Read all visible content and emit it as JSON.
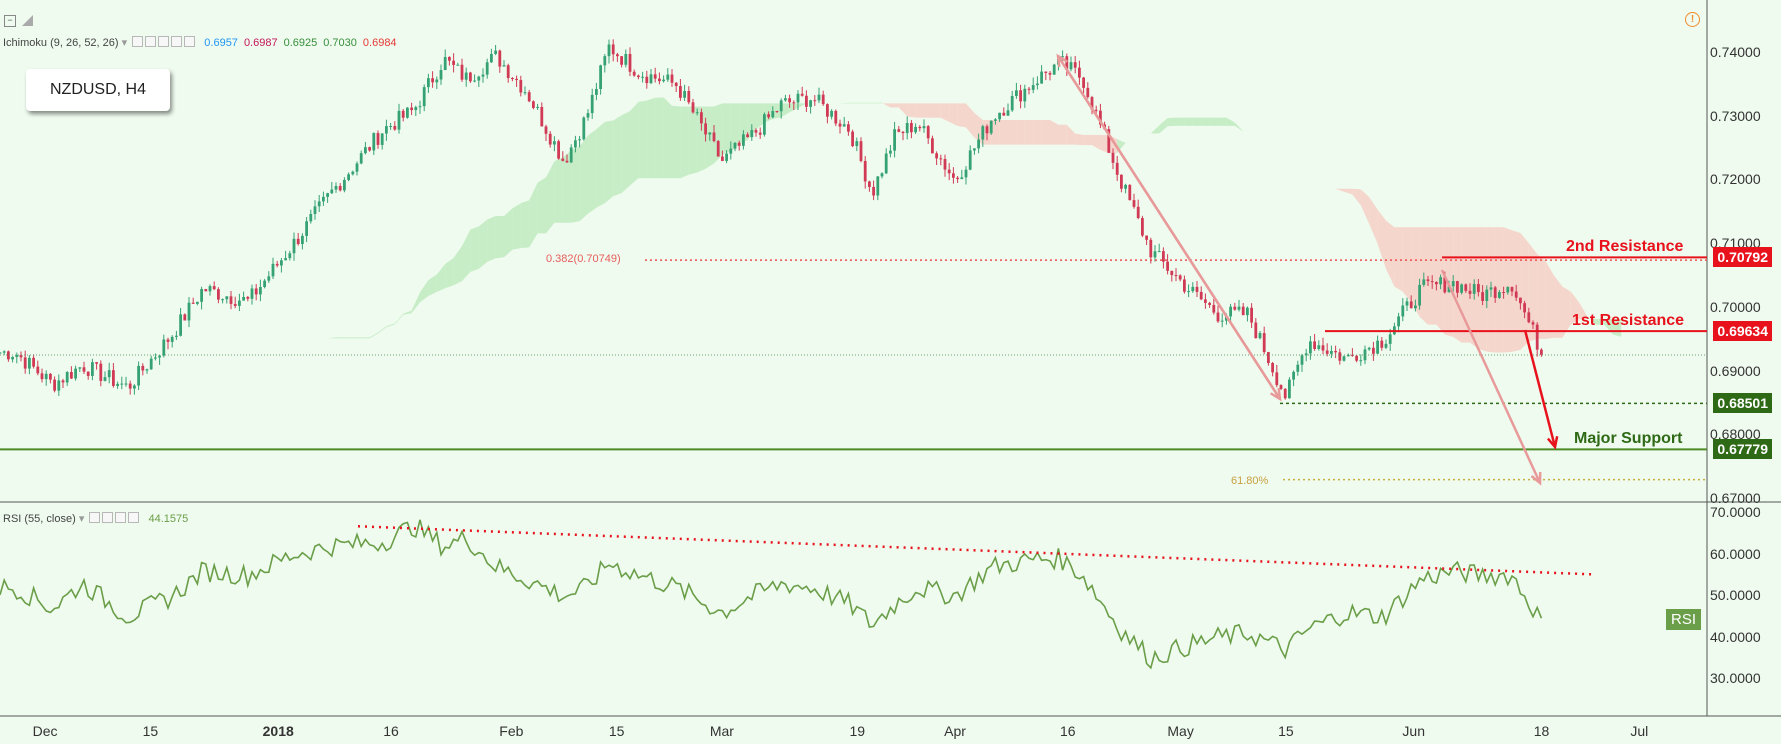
{
  "symbol": "NZDUSD, H4",
  "indicator": {
    "name": "Ichimoku (9, 26, 52, 26)",
    "values": [
      {
        "v": "0.6957",
        "color": "#2196f3"
      },
      {
        "v": "0.6987",
        "color": "#c2185b"
      },
      {
        "v": "0.6925",
        "color": "#388e3c"
      },
      {
        "v": "0.7030",
        "color": "#388e3c"
      },
      {
        "v": "0.6984",
        "color": "#e53935"
      }
    ]
  },
  "rsi_header": {
    "name": "RSI (55, close)",
    "value": "44.1575"
  },
  "rsi_badge": "RSI",
  "price_labels": [
    {
      "text": "0.70792",
      "price": 0.70792,
      "bg": "#e8121c"
    },
    {
      "text": "0.69634",
      "price": 0.69634,
      "bg": "#e8121c"
    },
    {
      "text": "0.68501",
      "price": 0.68501,
      "bg": "#2e6a16"
    },
    {
      "text": "0.67779",
      "price": 0.67779,
      "bg": "#2e6a16"
    }
  ],
  "annotations": {
    "resistance2": "2nd Resistance",
    "resistance1": "1st Resistance",
    "support": "Major Support",
    "fib382": "0.382(0.70749)",
    "fib618": "61.80%"
  },
  "colors": {
    "up": "#36a273",
    "down": "#d13a55",
    "resistance": "#e8121c",
    "support": "#4d8a24",
    "rsi": "#6a9e48"
  },
  "chart_data": {
    "type": "line",
    "xlabel": "",
    "ylabel": "",
    "ylim": [
      0.67,
      0.745
    ],
    "y_ticks": [
      "0.74000",
      "0.73000",
      "0.72000",
      "0.71000",
      "0.70000",
      "0.69000",
      "0.68000",
      "0.67000"
    ],
    "x_ticks": [
      "Dec",
      "15",
      "2018",
      "16",
      "Feb",
      "15",
      "Mar",
      "19",
      "Apr",
      "16",
      "May",
      "15",
      "Jun",
      "18",
      "Jul"
    ],
    "x_tick_dates": [
      "2017-12-01",
      "2017-12-15",
      "2018-01-01",
      "2018-01-16",
      "2018-02-01",
      "2018-02-15",
      "2018-03-01",
      "2018-03-19",
      "2018-04-01",
      "2018-04-16",
      "2018-05-01",
      "2018-05-15",
      "2018-06-01",
      "2018-06-18",
      "2018-07-01"
    ],
    "series": [
      {
        "x": [
          "2017-11-27",
          "2017-12-02",
          "2017-12-06",
          "2017-12-12",
          "2017-12-18",
          "2017-12-22",
          "2017-12-28",
          "2018-01-03",
          "2018-01-08",
          "2018-01-15",
          "2018-01-19",
          "2018-01-23",
          "2018-01-26",
          "2018-01-30",
          "2018-02-03",
          "2018-02-08",
          "2018-02-11",
          "2018-02-14",
          "2018-02-18",
          "2018-02-23",
          "2018-03-01",
          "2018-03-05",
          "2018-03-09",
          "2018-03-13",
          "2018-03-18",
          "2018-03-21",
          "2018-03-24",
          "2018-03-27",
          "2018-04-01",
          "2018-04-06",
          "2018-04-12",
          "2018-04-15",
          "2018-04-18",
          "2018-04-23",
          "2018-04-27",
          "2018-05-02",
          "2018-05-06",
          "2018-05-10",
          "2018-05-15",
          "2018-05-18",
          "2018-05-23",
          "2018-05-28",
          "2018-06-02",
          "2018-06-06",
          "2018-06-10",
          "2018-06-14",
          "2018-06-18"
        ],
        "values": [
          0.693,
          0.688,
          0.691,
          0.6875,
          0.696,
          0.703,
          0.701,
          0.71,
          0.718,
          0.728,
          0.731,
          0.739,
          0.736,
          0.7395,
          0.734,
          0.723,
          0.73,
          0.741,
          0.737,
          0.735,
          0.723,
          0.727,
          0.732,
          0.733,
          0.728,
          0.718,
          0.727,
          0.729,
          0.72,
          0.73,
          0.736,
          0.7385,
          0.736,
          0.72,
          0.709,
          0.703,
          0.699,
          0.699,
          0.686,
          0.695,
          0.692,
          0.695,
          0.703,
          0.704,
          0.702,
          0.704,
          0.693
        ]
      }
    ],
    "rsi": {
      "ylim": [
        20,
        70
      ],
      "y_ticks": [
        "70.0000",
        "60.0000",
        "50.0000",
        "40.0000",
        "30.0000"
      ],
      "values": [
        52,
        47,
        53,
        45,
        50,
        56,
        55,
        60,
        62,
        63,
        67,
        62,
        64,
        57,
        54,
        50,
        52,
        58,
        55,
        52,
        46,
        50,
        53,
        52,
        48,
        43,
        48,
        52,
        50,
        57,
        59,
        59,
        55,
        42,
        35,
        38,
        40,
        41,
        37,
        42,
        46,
        45,
        54,
        56,
        55,
        55,
        44
      ]
    }
  }
}
